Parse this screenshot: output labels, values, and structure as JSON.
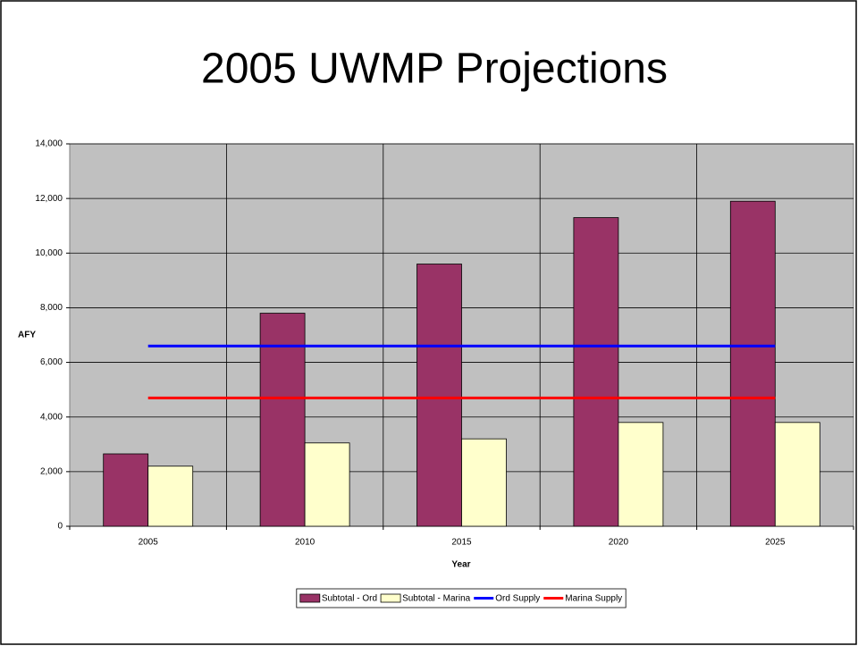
{
  "chart_data": {
    "type": "bar",
    "title": "2005 UWMP Projections",
    "x_label": "Year",
    "y_label": "AFY",
    "categories": [
      "2005",
      "2010",
      "2015",
      "2020",
      "2025"
    ],
    "series": [
      {
        "name": "Subtotal - Ord",
        "type": "bar",
        "color": "#993366",
        "values": [
          2650,
          7800,
          9600,
          11300,
          11900
        ]
      },
      {
        "name": "Subtotal - Marina",
        "type": "bar",
        "color": "#ffffcc",
        "values": [
          2200,
          3050,
          3200,
          3800,
          3800
        ]
      },
      {
        "name": "Ord Supply",
        "type": "line",
        "color": "#0000ff",
        "values": [
          6600,
          6600,
          6600,
          6600,
          6600
        ]
      },
      {
        "name": "Marina Supply",
        "type": "line",
        "color": "#ff0000",
        "values": [
          4700,
          4700,
          4700,
          4700,
          4700
        ]
      }
    ],
    "ylim": [
      0,
      14000
    ],
    "yticks": [
      0,
      {
        "value": 2000,
        "label": "2,000"
      },
      {
        "value": 4000,
        "label": "4,000"
      },
      {
        "value": 6000,
        "label": "6,000"
      },
      {
        "value": 8000,
        "label": "8,000"
      },
      {
        "value": 10000,
        "label": "10,000"
      },
      {
        "value": 12000,
        "label": "12,000"
      },
      {
        "value": 14000,
        "label": "14,000"
      }
    ],
    "grid": true,
    "legend": "bottom"
  }
}
